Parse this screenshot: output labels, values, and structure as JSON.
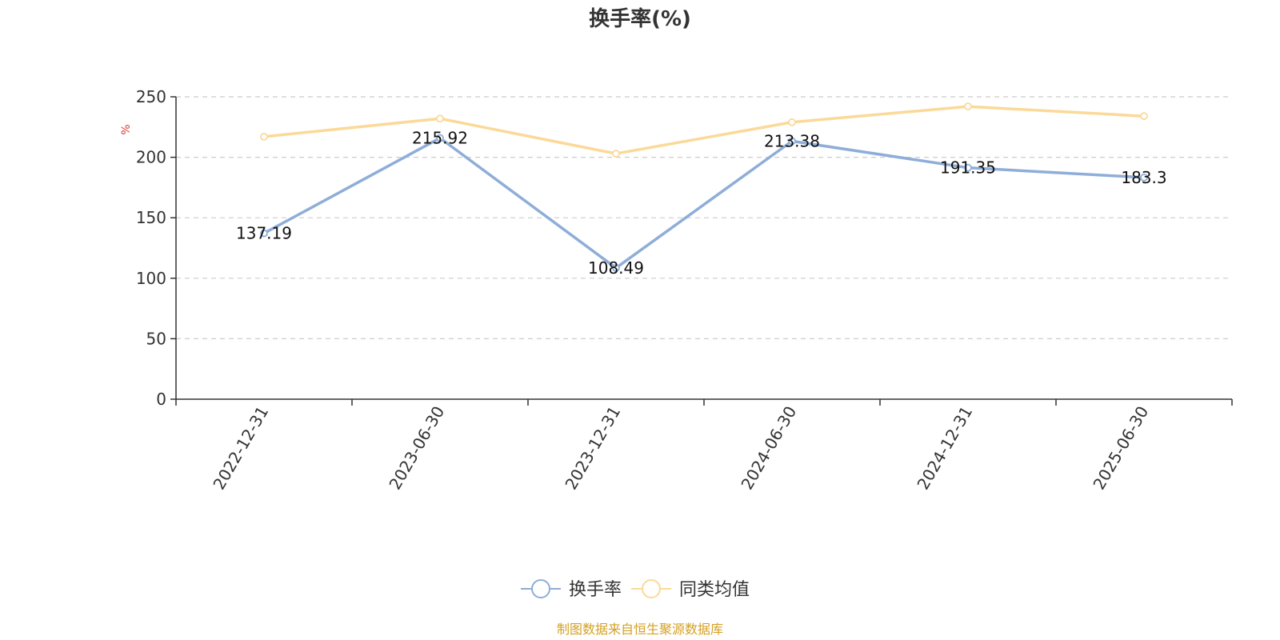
{
  "chart_data": {
    "type": "line",
    "title": "换手率(%)",
    "y_unit": "%",
    "categories": [
      "2022-12-31",
      "2023-06-30",
      "2023-12-31",
      "2024-06-30",
      "2024-12-31",
      "2025-06-30"
    ],
    "ylim": [
      0,
      250
    ],
    "yticks": [
      0,
      50,
      100,
      150,
      200,
      250
    ],
    "grid": true,
    "legend_position": "bottom",
    "series": [
      {
        "name": "换手率",
        "color": "#8eadd8",
        "values": [
          137.19,
          215.92,
          108.49,
          213.38,
          191.35,
          183.3
        ],
        "show_labels": true
      },
      {
        "name": "同类均值",
        "color": "#fbd998",
        "values": [
          217,
          232,
          203,
          229,
          242,
          234
        ],
        "show_labels": false
      }
    ]
  },
  "source_note": "制图数据来自恒生聚源数据库",
  "colors": {
    "unit": "#e53935",
    "source": "#d4a022",
    "axis": "#333333",
    "grid": "#cccccc"
  }
}
